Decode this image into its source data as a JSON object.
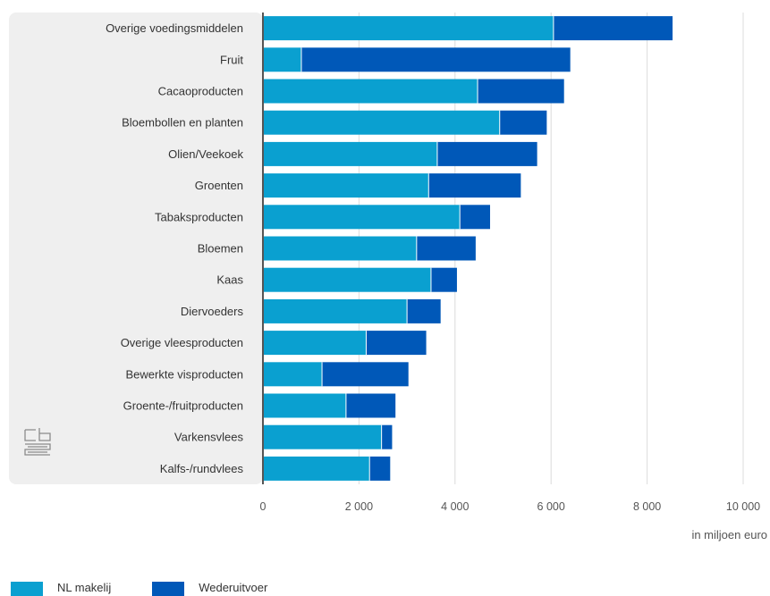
{
  "colors": {
    "nl": "#0aa0d0",
    "reexport": "#0058b8",
    "panel": "#efefef",
    "grid": "#dcdcdc",
    "axis": "#555555"
  },
  "logo": {
    "icon": "cbs-logo-icon"
  },
  "chart_data": {
    "type": "bar",
    "orientation": "horizontal",
    "stacked": true,
    "categories": [
      "Overige voedingsmiddelen",
      "Fruit",
      "Cacaoproducten",
      "Bloembollen en planten",
      "Olien/Veekoek",
      "Groenten",
      "Tabaksproducten",
      "Bloemen",
      "Kaas",
      "Diervoeders",
      "Overige vleesproducten",
      "Bewerkte visproducten",
      "Groente-/fruitproducten",
      "Varkensvlees",
      "Kalfs-/rundvlees"
    ],
    "series": [
      {
        "name": "NL makelij",
        "color": "#0aa0d0",
        "values": [
          6050,
          800,
          4470,
          4930,
          3630,
          3450,
          4100,
          3200,
          3500,
          3000,
          2150,
          1230,
          1730,
          2470,
          2220
        ]
      },
      {
        "name": "Wederuitvoer",
        "color": "#0058b8",
        "values": [
          2480,
          5600,
          1800,
          980,
          2080,
          1920,
          630,
          1230,
          540,
          700,
          1250,
          1800,
          1030,
          220,
          430
        ]
      }
    ],
    "xlim": [
      0,
      10000
    ],
    "xticks": [
      0,
      2000,
      4000,
      6000,
      8000,
      10000
    ],
    "xtick_labels": [
      "0",
      "2 000",
      "4 000",
      "6 000",
      "8 000",
      "10 000"
    ],
    "xlabel": "in miljoen euro",
    "grid": true,
    "legend_position": "bottom-left"
  }
}
